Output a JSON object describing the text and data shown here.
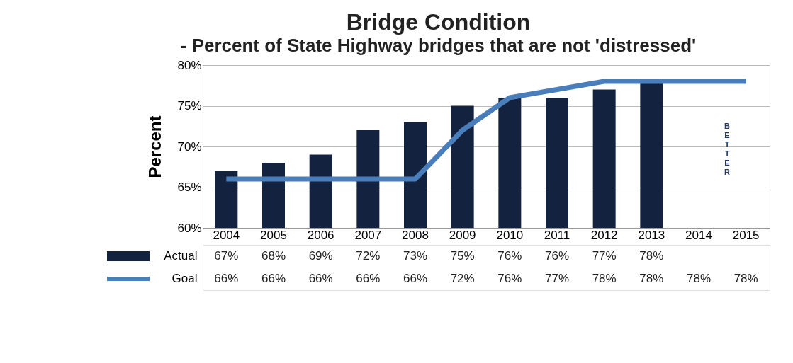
{
  "chart_data": {
    "type": "bar",
    "title": "Bridge Condition",
    "subtitle": "- Percent of State Highway bridges that are not 'distressed'",
    "ylabel": "Percent",
    "categories": [
      "2004",
      "2005",
      "2006",
      "2007",
      "2008",
      "2009",
      "2010",
      "2011",
      "2012",
      "2013",
      "2014",
      "2015"
    ],
    "series": [
      {
        "name": "Actual",
        "color": "#13233f",
        "values": [
          67,
          68,
          69,
          72,
          73,
          75,
          76,
          76,
          77,
          78,
          null,
          null
        ],
        "value_labels": [
          "67%",
          "68%",
          "69%",
          "72%",
          "73%",
          "75%",
          "76%",
          "76%",
          "77%",
          "78%",
          null,
          null
        ]
      },
      {
        "name": "Goal",
        "type": "line",
        "color": "#4a7ebb",
        "values": [
          66,
          66,
          66,
          66,
          66,
          72,
          76,
          77,
          78,
          78,
          78,
          78
        ],
        "value_labels": [
          "66%",
          "66%",
          "66%",
          "66%",
          "66%",
          "72%",
          "76%",
          "77%",
          "78%",
          "78%",
          "78%",
          "78%"
        ]
      }
    ],
    "ylim": [
      60,
      80
    ],
    "yticks": [
      {
        "value": 60,
        "label": "60%"
      },
      {
        "value": 65,
        "label": "65%"
      },
      {
        "value": 70,
        "label": "70%"
      },
      {
        "value": 75,
        "label": "75%"
      },
      {
        "value": 80,
        "label": "80%"
      }
    ],
    "grid": "y",
    "legend": "bottom",
    "annotations": [
      "BETTER"
    ]
  }
}
